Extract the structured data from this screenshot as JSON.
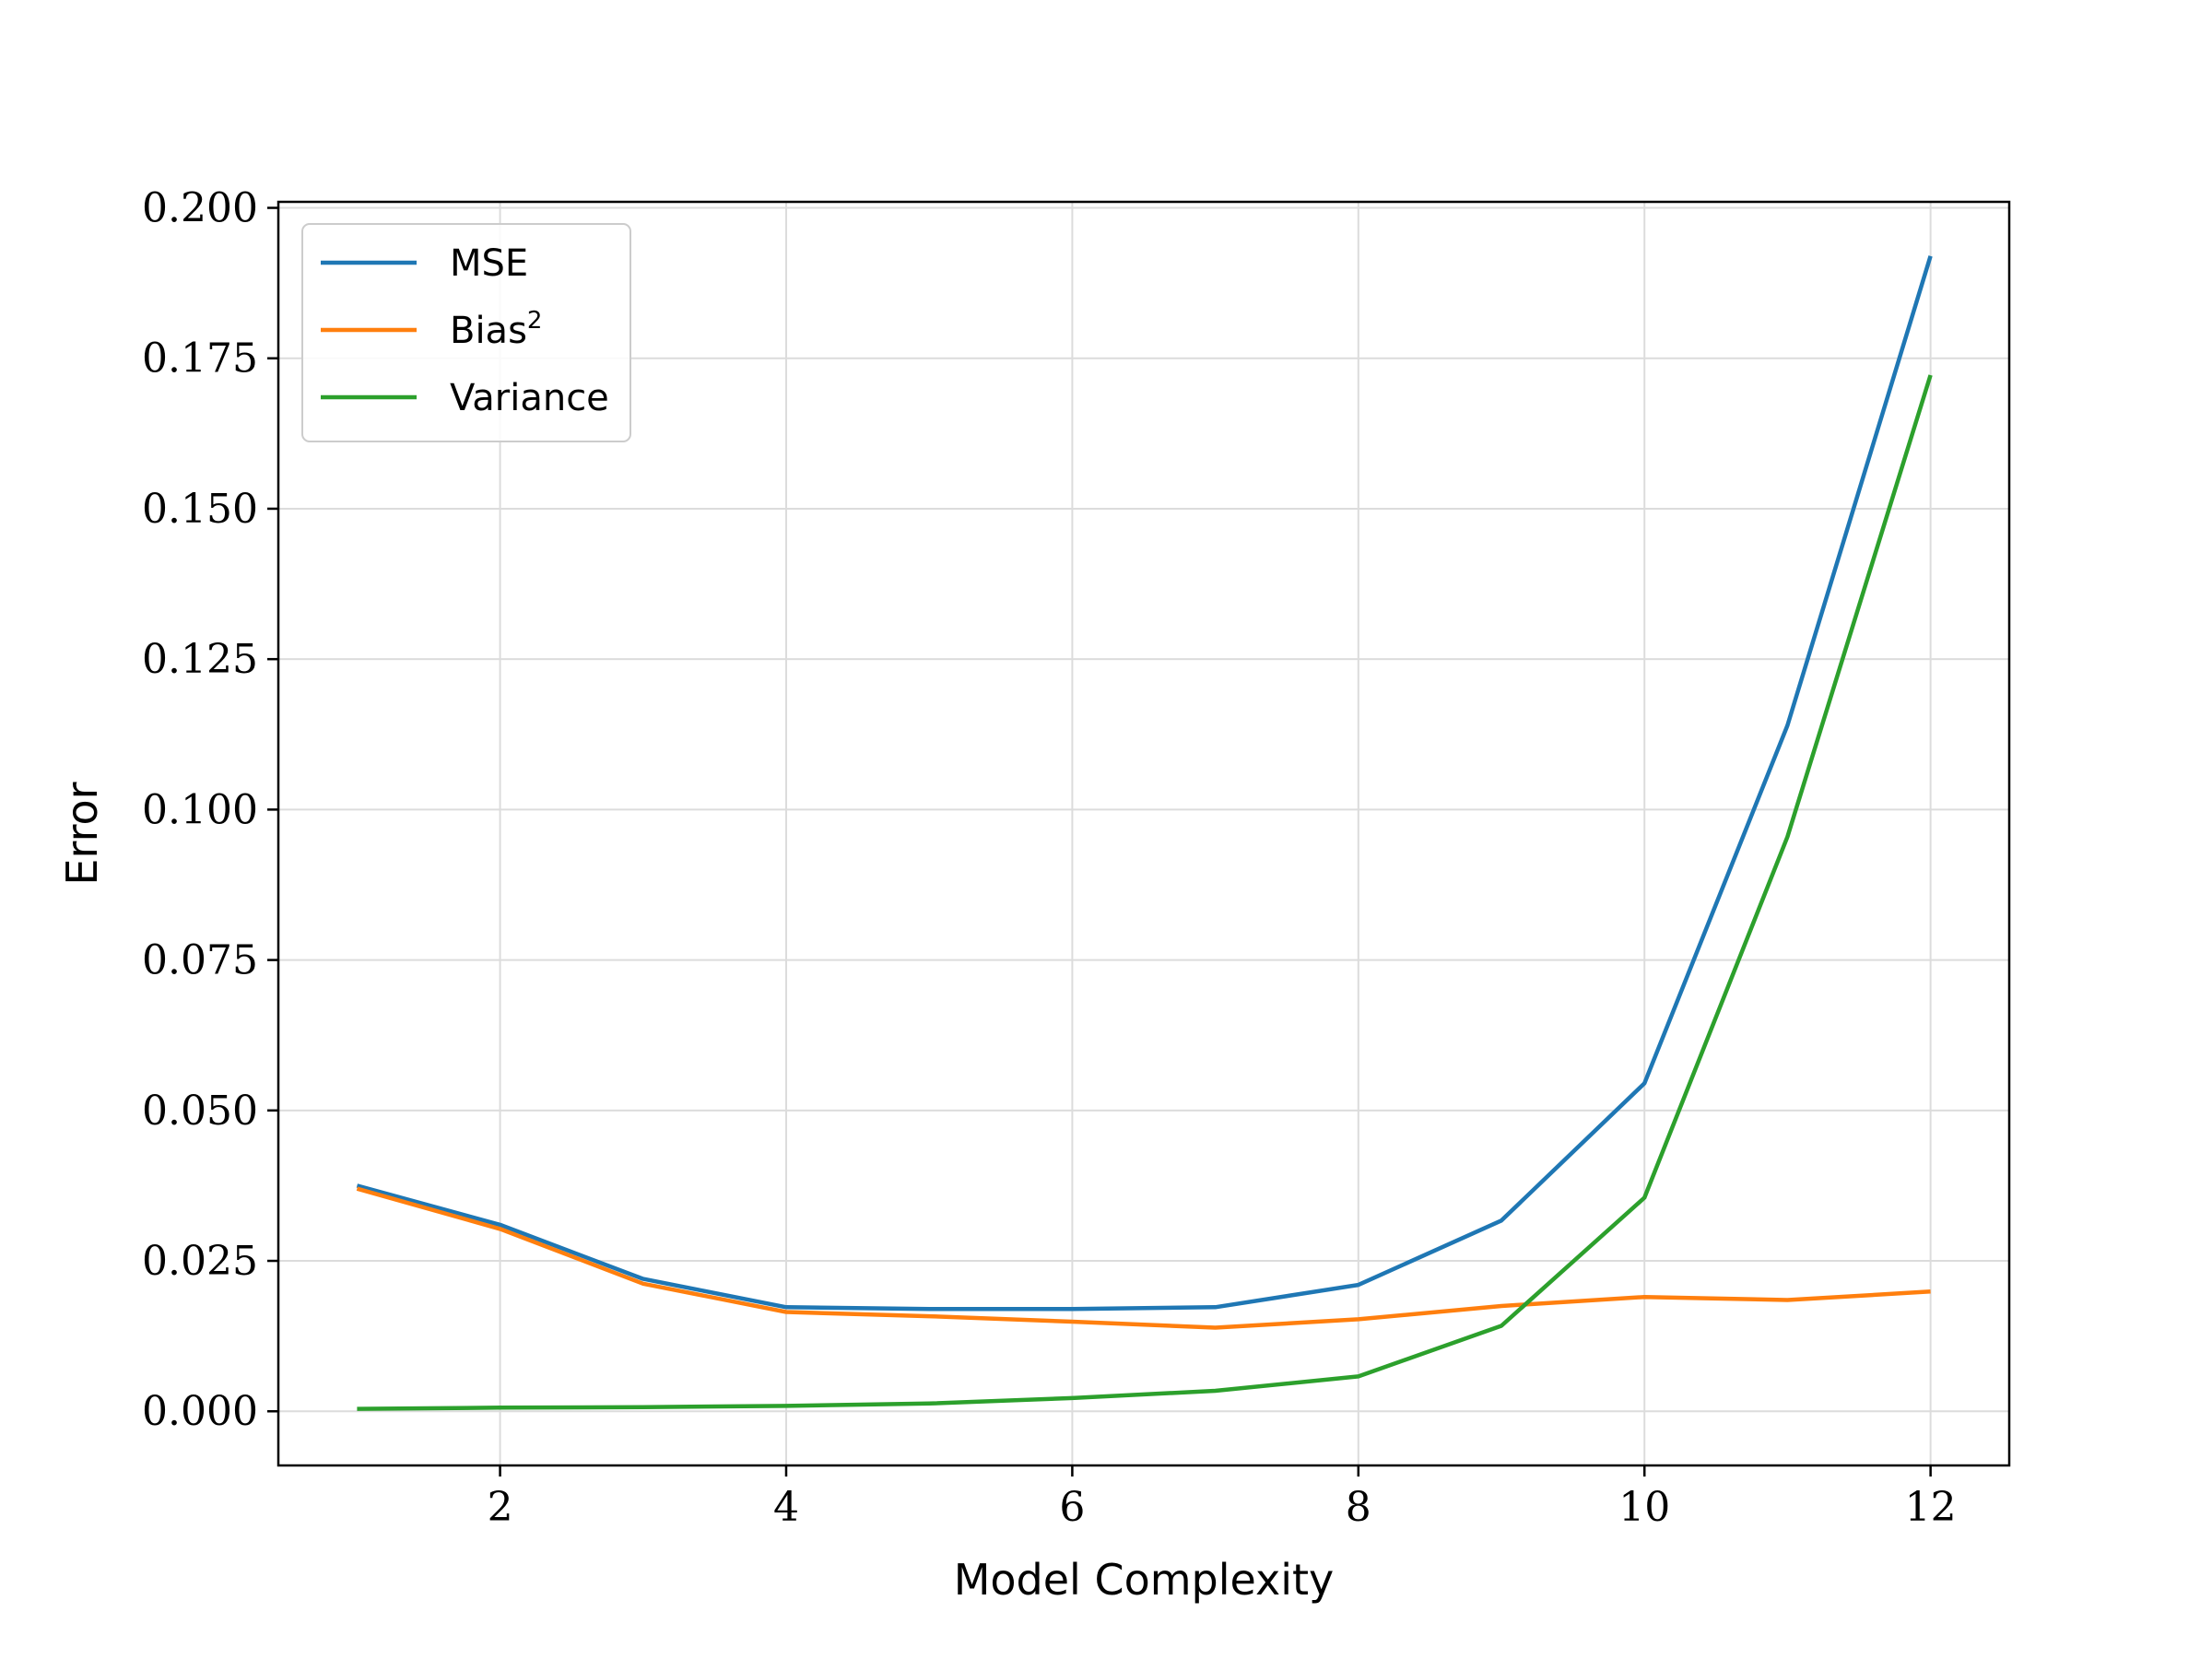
{
  "chart_data": {
    "type": "line",
    "title": "",
    "xlabel": "Model Complexity",
    "ylabel": "Error",
    "x": [
      1,
      2,
      3,
      4,
      5,
      6,
      7,
      8,
      9,
      10,
      11,
      12
    ],
    "xlim": [
      0.45,
      12.55
    ],
    "ylim": [
      -0.009,
      0.201
    ],
    "xticks": [
      2,
      4,
      6,
      8,
      10,
      12
    ],
    "yticks": [
      0.0,
      0.025,
      0.05,
      0.075,
      0.1,
      0.125,
      0.15,
      0.175,
      0.2
    ],
    "xtick_labels": [
      "2",
      "4",
      "6",
      "8",
      "10",
      "12"
    ],
    "ytick_labels": [
      "0.000",
      "0.025",
      "0.050",
      "0.075",
      "0.100",
      "0.125",
      "0.150",
      "0.175",
      "0.200"
    ],
    "grid": true,
    "legend_position": "top-left",
    "series": [
      {
        "name": "MSE",
        "color": "#1f77b4",
        "values": [
          0.0375,
          0.031,
          0.022,
          0.0173,
          0.017,
          0.017,
          0.0173,
          0.021,
          0.0317,
          0.0545,
          0.114,
          0.192
        ]
      },
      {
        "name": "Bias",
        "name_superscript": "2",
        "color": "#ff7f0e",
        "values": [
          0.037,
          0.0303,
          0.0212,
          0.0165,
          0.0158,
          0.0149,
          0.0139,
          0.0153,
          0.0175,
          0.019,
          0.0185,
          0.0199
        ]
      },
      {
        "name": "Variance",
        "color": "#2ca02c",
        "values": [
          0.0004,
          0.0006,
          0.0007,
          0.0009,
          0.0013,
          0.0022,
          0.0034,
          0.0058,
          0.0142,
          0.0355,
          0.0955,
          0.1722
        ]
      }
    ]
  }
}
